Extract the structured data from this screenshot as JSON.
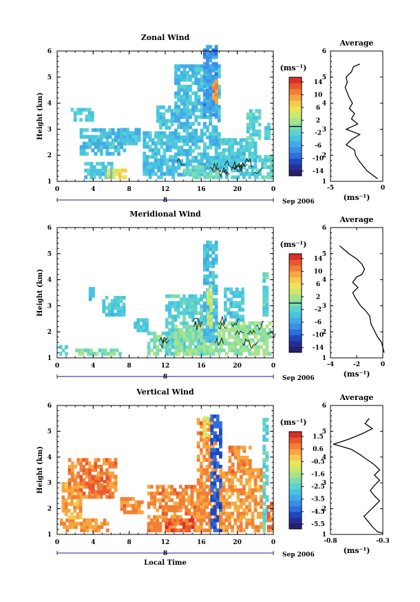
{
  "colormap": [
    "#2a1c6e",
    "#232f96",
    "#1f48bf",
    "#2d6ee0",
    "#3a8ee8",
    "#42abe6",
    "#49c3e1",
    "#5cd3cf",
    "#7fdcae",
    "#a6e48b",
    "#cbe86a",
    "#ece35a",
    "#f8c94b",
    "#f8a640",
    "#f27f36",
    "#e8572e",
    "#d92f28"
  ],
  "panels": [
    {
      "title": "Zonal Wind",
      "ylabel": "Height (km)",
      "xlabel": "",
      "x_ticks": [
        "0",
        "4",
        "8",
        "12",
        "16",
        "20",
        "0"
      ],
      "y_ticks": [
        "1",
        "2",
        "3",
        "4",
        "5",
        "6"
      ],
      "date_label": "8",
      "month_label": "Sep 2006",
      "colorbar_unit": "(ms⁻¹)",
      "colorbar_ticks": [
        "14",
        "10",
        "6",
        "2",
        "-2",
        "-6",
        "-10",
        "-14"
      ],
      "avg_title": "Average",
      "avg_xlabel": "(ms⁻¹)",
      "avg_x_ticks": [
        "-5",
        "0"
      ]
    },
    {
      "title": "Meridional Wind",
      "ylabel": "Height (km)",
      "xlabel": "",
      "x_ticks": [
        "0",
        "4",
        "8",
        "12",
        "16",
        "20",
        "0"
      ],
      "y_ticks": [
        "1",
        "2",
        "3",
        "4",
        "5",
        "6"
      ],
      "date_label": "8",
      "month_label": "Sep 2006",
      "colorbar_unit": "(ms⁻¹)",
      "colorbar_ticks": [
        "14",
        "10",
        "6",
        "2",
        "-2",
        "-6",
        "-10",
        "-14"
      ],
      "avg_title": "Average",
      "avg_xlabel": "(ms⁻¹)",
      "avg_x_ticks": [
        "-4",
        "-2",
        "0"
      ]
    },
    {
      "title": "Vertical Wind",
      "ylabel": "Height (km)",
      "xlabel": "Local Time",
      "x_ticks": [
        "0",
        "4",
        "8",
        "12",
        "16",
        "20",
        "0"
      ],
      "y_ticks": [
        "1",
        "2",
        "3",
        "4",
        "5",
        "6"
      ],
      "date_label": "8",
      "month_label": "Sep 2006",
      "colorbar_unit": "(ms⁻¹)",
      "colorbar_ticks": [
        "1.5",
        "0.6",
        "-0.5",
        "-1.6",
        "-2.5",
        "-3.5",
        "-4.5",
        "-5.5"
      ],
      "avg_title": "Average",
      "avg_xlabel": "(ms⁻¹)",
      "avg_x_ticks": [
        "-0.8",
        "-0.3"
      ]
    }
  ],
  "chart_data": [
    {
      "type": "heatmap",
      "title": "Zonal Wind",
      "xlabel": "",
      "ylabel": "Height (km)",
      "xlim": [
        0,
        24
      ],
      "ylim": [
        1,
        6
      ],
      "colorbar_range": [
        -16,
        16
      ],
      "regions": [
        {
          "t": [
            1.5,
            4
          ],
          "h": [
            3.3,
            3.8
          ],
          "v": -3
        },
        {
          "t": [
            2.5,
            7.5
          ],
          "h": [
            2.0,
            3.0
          ],
          "v": -4
        },
        {
          "t": [
            7,
            9
          ],
          "h": [
            2.4,
            3.0
          ],
          "v": -4
        },
        {
          "t": [
            3,
            6
          ],
          "h": [
            1.1,
            1.7
          ],
          "v": -3
        },
        {
          "t": [
            5.5,
            7.5
          ],
          "h": [
            1.1,
            1.4
          ],
          "v": 6
        },
        {
          "t": [
            9.5,
            13
          ],
          "h": [
            1.1,
            2.8
          ],
          "v": -4
        },
        {
          "t": [
            11,
            13
          ],
          "h": [
            3.0,
            3.8
          ],
          "v": -3
        },
        {
          "t": [
            13,
            18
          ],
          "h": [
            1.2,
            5.4
          ],
          "v": -4
        },
        {
          "t": [
            14,
            18
          ],
          "h": [
            1.1,
            1.6
          ],
          "v": -1
        },
        {
          "t": [
            16.2,
            17.6
          ],
          "h": [
            3.5,
            6.2
          ],
          "v": -7
        },
        {
          "t": [
            17.2,
            17.6
          ],
          "h": [
            4.0,
            4.8
          ],
          "v": 10
        },
        {
          "t": [
            18,
            22
          ],
          "h": [
            1.1,
            2.6
          ],
          "v": -3
        },
        {
          "t": [
            21,
            22.5
          ],
          "h": [
            2.6,
            3.7
          ],
          "v": -2
        },
        {
          "t": [
            22,
            23.8
          ],
          "h": [
            1.1,
            2.0
          ],
          "v": -2
        },
        {
          "t": [
            23,
            23.5
          ],
          "h": [
            2.6,
            3.2
          ],
          "v": -3
        }
      ],
      "average_profile": {
        "xlim": [
          -5,
          0
        ],
        "x": [
          -2.2,
          -2.8,
          -3.0,
          -3.5,
          -3.4,
          -3.6,
          -3.2,
          -2.9,
          -3.2,
          -2.7,
          -3.0,
          -2.4,
          -3.5,
          -2.2,
          -3.0,
          -3.5,
          -2.7,
          -2.6,
          -2.3,
          -1.5,
          -0.5
        ],
        "y": [
          5.5,
          5.4,
          5.2,
          5.0,
          4.8,
          4.6,
          4.2,
          4.0,
          3.8,
          3.6,
          3.4,
          3.2,
          3.0,
          2.8,
          2.6,
          2.4,
          2.2,
          2.0,
          1.8,
          1.4,
          1.1
        ]
      }
    },
    {
      "type": "heatmap",
      "title": "Meridional Wind",
      "xlabel": "",
      "ylabel": "Height (km)",
      "xlim": [
        0,
        24
      ],
      "ylim": [
        1,
        6
      ],
      "colorbar_range": [
        -16,
        16
      ],
      "regions": [
        {
          "t": [
            0.2,
            1
          ],
          "h": [
            1.1,
            1.4
          ],
          "v": -2
        },
        {
          "t": [
            2,
            7
          ],
          "h": [
            1.1,
            1.3
          ],
          "v": 0
        },
        {
          "t": [
            3.5,
            4
          ],
          "h": [
            3.2,
            3.7
          ],
          "v": -3
        },
        {
          "t": [
            5,
            7.5
          ],
          "h": [
            2.6,
            3.3
          ],
          "v": -3
        },
        {
          "t": [
            8.5,
            10
          ],
          "h": [
            2.0,
            2.4
          ],
          "v": -3
        },
        {
          "t": [
            10,
            13
          ],
          "h": [
            1.1,
            2.0
          ],
          "v": 0
        },
        {
          "t": [
            12,
            16
          ],
          "h": [
            1.1,
            3.4
          ],
          "v": -2
        },
        {
          "t": [
            13,
            18
          ],
          "h": [
            1.1,
            2.2
          ],
          "v": 1
        },
        {
          "t": [
            16.2,
            17.8
          ],
          "h": [
            1.6,
            5.5
          ],
          "v": -4
        },
        {
          "t": [
            16.6,
            17.2
          ],
          "h": [
            2.0,
            3.8
          ],
          "v": 3
        },
        {
          "t": [
            18,
            23.5
          ],
          "h": [
            1.1,
            2.4
          ],
          "v": 1
        },
        {
          "t": [
            18.5,
            20.5
          ],
          "h": [
            2.4,
            3.6
          ],
          "v": -3
        },
        {
          "t": [
            22.8,
            23.4
          ],
          "h": [
            2.6,
            4.3
          ],
          "v": -2
        }
      ],
      "average_profile": {
        "xlim": [
          -4,
          0
        ],
        "x": [
          -3.3,
          -2.6,
          -2.0,
          -1.6,
          -1.4,
          -1.6,
          -2.0,
          -2.3,
          -1.9,
          -2.3,
          -2.1,
          -1.7,
          -1.3,
          -1.0,
          -0.9,
          -0.6,
          -0.4,
          -0.1,
          0.0,
          0.1
        ],
        "y": [
          5.3,
          5.0,
          4.8,
          4.6,
          4.4,
          4.2,
          4.1,
          3.9,
          3.7,
          3.5,
          3.3,
          3.0,
          2.8,
          2.6,
          2.3,
          2.0,
          1.8,
          1.6,
          1.4,
          1.2
        ]
      }
    },
    {
      "type": "heatmap",
      "title": "Vertical Wind",
      "xlabel": "Local Time",
      "ylabel": "Height (km)",
      "xlim": [
        0,
        24
      ],
      "ylim": [
        1,
        6
      ],
      "colorbar_range": [
        -6,
        2
      ],
      "regions": [
        {
          "t": [
            0.3,
            5.5
          ],
          "h": [
            1.1,
            1.6
          ],
          "v": 0.6
        },
        {
          "t": [
            0.5,
            2.5
          ],
          "h": [
            1.6,
            3.0
          ],
          "v": 0.3
        },
        {
          "t": [
            1.2,
            6.5
          ],
          "h": [
            2.4,
            3.9
          ],
          "v": 0.8
        },
        {
          "t": [
            3.5,
            5.5
          ],
          "h": [
            2.6,
            3.2
          ],
          "v": 1.1
        },
        {
          "t": [
            7,
            9.5
          ],
          "h": [
            1.8,
            2.4
          ],
          "v": 0.6
        },
        {
          "t": [
            10,
            16
          ],
          "h": [
            1.1,
            2.8
          ],
          "v": 0.7
        },
        {
          "t": [
            12,
            15
          ],
          "h": [
            1.1,
            1.6
          ],
          "v": 1.3
        },
        {
          "t": [
            15.5,
            17.5
          ],
          "h": [
            1.1,
            5.4
          ],
          "v": 0.6
        },
        {
          "t": [
            16.2,
            16.8
          ],
          "h": [
            4.8,
            5.6
          ],
          "v": -0.8
        },
        {
          "t": [
            17,
            18
          ],
          "h": [
            1.1,
            5.6
          ],
          "v": -4.6
        },
        {
          "t": [
            18,
            22.5
          ],
          "h": [
            1.1,
            3.5
          ],
          "v": 0.5
        },
        {
          "t": [
            19,
            21.5
          ],
          "h": [
            3.4,
            4.4
          ],
          "v": 0.7
        },
        {
          "t": [
            22.8,
            23.3
          ],
          "h": [
            1.1,
            5.4
          ],
          "v": -2.5
        },
        {
          "t": [
            23.3,
            23.8
          ],
          "h": [
            1.1,
            2.2
          ],
          "v": 0.8
        }
      ],
      "average_profile": {
        "xlim": [
          -0.8,
          -0.3
        ],
        "x": [
          -0.43,
          -0.47,
          -0.4,
          -0.5,
          -0.62,
          -0.77,
          -0.6,
          -0.52,
          -0.45,
          -0.38,
          -0.33,
          -0.38,
          -0.33,
          -0.38,
          -0.42,
          -0.38,
          -0.33,
          -0.38,
          -0.43,
          -0.48,
          -0.44,
          -0.4,
          -0.35,
          -0.3
        ],
        "y": [
          5.5,
          5.3,
          5.1,
          4.9,
          4.7,
          4.5,
          4.3,
          4.1,
          3.9,
          3.7,
          3.5,
          3.3,
          3.1,
          2.9,
          2.7,
          2.5,
          2.3,
          2.1,
          1.9,
          1.7,
          1.5,
          1.3,
          1.1,
          1.05
        ]
      }
    }
  ]
}
